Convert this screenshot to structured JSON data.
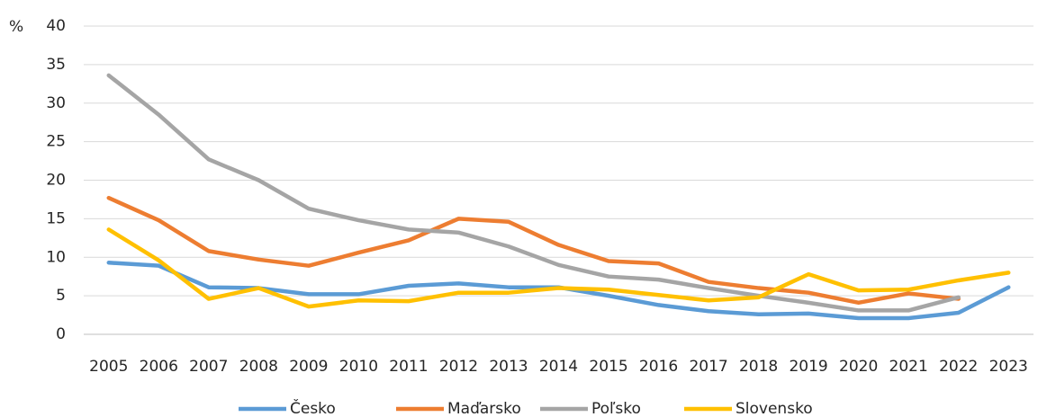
{
  "chart_data": {
    "type": "line",
    "y_label": "%",
    "categories": [
      "2005",
      "2006",
      "2007",
      "2008",
      "2009",
      "2010",
      "2011",
      "2012",
      "2013",
      "2014",
      "2015",
      "2016",
      "2017",
      "2018",
      "2019",
      "2020",
      "2021",
      "2022",
      "2023"
    ],
    "series": [
      {
        "name": "Česko",
        "color": "#5b9bd5",
        "values": [
          9.3,
          8.9,
          6.1,
          6.0,
          5.2,
          5.2,
          6.3,
          6.6,
          6.1,
          6.1,
          5.0,
          3.8,
          3.0,
          2.6,
          2.7,
          2.1,
          2.1,
          2.8,
          6.1
        ]
      },
      {
        "name": "Maďarsko",
        "color": "#ed7d31",
        "values": [
          17.7,
          14.8,
          10.8,
          9.7,
          8.9,
          10.6,
          12.2,
          15.0,
          14.6,
          11.6,
          9.5,
          9.2,
          6.8,
          6.0,
          5.4,
          4.1,
          5.3,
          4.6,
          null
        ]
      },
      {
        "name": "Poľsko",
        "color": "#a5a5a5",
        "values": [
          33.6,
          28.5,
          22.7,
          20.0,
          16.3,
          14.8,
          13.6,
          13.2,
          11.4,
          9.0,
          7.5,
          7.1,
          6.0,
          5.0,
          4.1,
          3.1,
          3.1,
          4.8,
          null
        ]
      },
      {
        "name": "Slovensko",
        "color": "#ffc000",
        "values": [
          13.6,
          9.6,
          4.6,
          6.0,
          3.6,
          4.4,
          4.3,
          5.4,
          5.4,
          6.0,
          5.8,
          5.1,
          4.4,
          4.8,
          7.8,
          5.7,
          5.8,
          7.0,
          8.0
        ]
      }
    ],
    "ylim": [
      0,
      40
    ],
    "yticks": [
      0,
      5,
      10,
      15,
      20,
      25,
      30,
      35,
      40
    ],
    "grid": true,
    "legend": "bottom"
  }
}
